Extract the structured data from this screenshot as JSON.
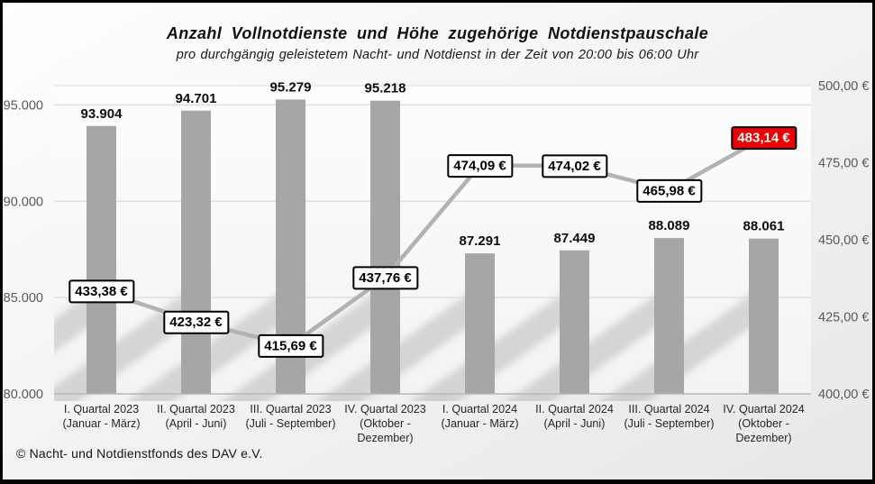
{
  "footer": {
    "copyright": "© Nacht- und Notdienstfonds  des DAV e.V."
  },
  "chart_data": {
    "type": "combo-bar-line",
    "title": "Anzahl Vollnotdienste und Höhe zugehörige Notdienstpauschale",
    "subtitle": "pro durchgängig geleistetem Nacht- und Notdienst in der Zeit von 20:00 bis 06:00 Uhr",
    "categories": [
      "I. Quartal 2023",
      "II. Quartal 2023",
      "III. Quartal 2023",
      "IV. Quartal 2023",
      "I. Quartal 2024",
      "II. Quartal 2024",
      "III. Quartal 2024",
      "IV. Quartal 2024"
    ],
    "category_sublabels": [
      "(Januar - März)",
      "(April - Juni)",
      "(Juli - September)",
      "(Oktober - Dezember)",
      "(Januar - März)",
      "(April - Juni)",
      "(Juli - September)",
      "(Oktober - Dezember)"
    ],
    "series": [
      {
        "name": "Anzahl Vollnotdienste",
        "type": "bar",
        "axis": "left",
        "values": [
          93904,
          94701,
          95279,
          95218,
          87291,
          87449,
          88089,
          88061
        ],
        "labels": [
          "93.904",
          "94.701",
          "95.279",
          "95.218",
          "87.291",
          "87.449",
          "88.089",
          "88.061"
        ]
      },
      {
        "name": "Notdienstpauschale",
        "type": "line",
        "axis": "right",
        "values": [
          433.38,
          423.32,
          415.69,
          437.76,
          474.09,
          474.02,
          465.98,
          483.14
        ],
        "labels": [
          "433,38 €",
          "423,32 €",
          "415,69 €",
          "437,76 €",
          "474,09 €",
          "474,02 €",
          "465,98 €",
          "483,14 €"
        ],
        "highlight_last": true
      }
    ],
    "left_axis": {
      "min": 80000,
      "max": 96000,
      "ticks": [
        {
          "value": 95000,
          "label": "95.000"
        },
        {
          "value": 90000,
          "label": "90.000"
        },
        {
          "value": 85000,
          "label": "85.000"
        },
        {
          "value": 80000,
          "label": "80.000"
        }
      ]
    },
    "right_axis": {
      "min": 400,
      "max": 500,
      "ticks": [
        {
          "value": 500,
          "label": "500,00 €"
        },
        {
          "value": 475,
          "label": "475,00 €"
        },
        {
          "value": 450,
          "label": "450,00 €"
        },
        {
          "value": 425,
          "label": "425,00 €"
        },
        {
          "value": 400,
          "label": "400,00 €"
        }
      ]
    },
    "grid": "horizontal",
    "legend": "none",
    "colors": {
      "bar": "#a6a6a6",
      "line": "#b2b2b2",
      "grid": "#dcdcdc",
      "axis_line": "#b7b7b7",
      "tick_text": "#595959",
      "label_box_bg": "#ffffff",
      "label_box_border": "#000000",
      "highlight_bg": "#ee0000",
      "highlight_text": "#ffffff",
      "shadow": "#8c8c8c"
    }
  }
}
